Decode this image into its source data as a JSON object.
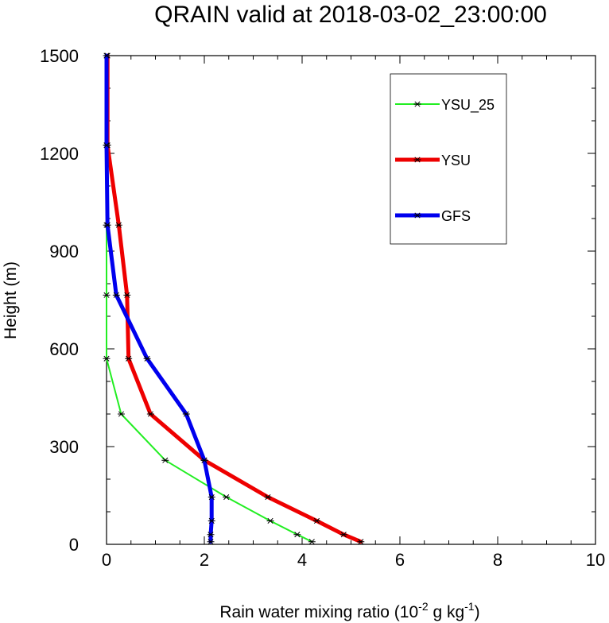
{
  "chart_data": {
    "type": "line",
    "title": "QRAIN valid at 2018-03-02_23:00:00",
    "xlabel": {
      "base": "Rain water mixing ratio (10",
      "exp1": "-2",
      "mid": " g kg",
      "exp2": "-1",
      "end": ")"
    },
    "ylabel": "Height (m)",
    "xlim": [
      0,
      10
    ],
    "ylim": [
      0,
      1500
    ],
    "xticks": [
      0,
      2,
      4,
      6,
      8,
      10
    ],
    "yticks": [
      0,
      300,
      600,
      900,
      1200,
      1500
    ],
    "legend_position": "top-right",
    "series": [
      {
        "name": "YSU_25",
        "color": "#22ee22",
        "width": 2,
        "points": [
          [
            4.2,
            8
          ],
          [
            3.9,
            30
          ],
          [
            3.35,
            72
          ],
          [
            2.45,
            145
          ],
          [
            1.2,
            258
          ],
          [
            0.3,
            400
          ],
          [
            0.0,
            570
          ],
          [
            0.0,
            765
          ],
          [
            0.0,
            980
          ],
          [
            0.0,
            1225
          ],
          [
            0.0,
            1500
          ]
        ]
      },
      {
        "name": "YSU",
        "color": "#ee0000",
        "width": 5,
        "points": [
          [
            5.2,
            8
          ],
          [
            4.85,
            30
          ],
          [
            4.3,
            72
          ],
          [
            3.3,
            145
          ],
          [
            2.0,
            258
          ],
          [
            0.9,
            400
          ],
          [
            0.45,
            570
          ],
          [
            0.42,
            765
          ],
          [
            0.25,
            980
          ],
          [
            0.02,
            1225
          ],
          [
            0.02,
            1500
          ]
        ]
      },
      {
        "name": "GFS",
        "color": "#0000ee",
        "width": 5,
        "points": [
          [
            2.13,
            8
          ],
          [
            2.13,
            30
          ],
          [
            2.15,
            72
          ],
          [
            2.15,
            145
          ],
          [
            2.0,
            258
          ],
          [
            1.63,
            400
          ],
          [
            0.83,
            570
          ],
          [
            0.2,
            765
          ],
          [
            0.02,
            980
          ],
          [
            0.0,
            1225
          ],
          [
            0.0,
            1500
          ]
        ]
      }
    ]
  }
}
